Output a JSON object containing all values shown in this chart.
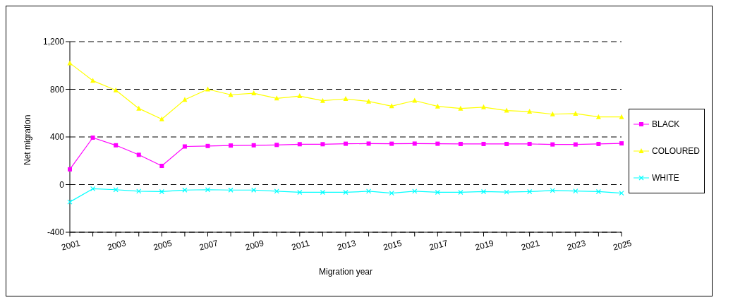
{
  "chart_data": {
    "type": "line",
    "xlabel": "Migration year",
    "ylabel": "Net migration",
    "categories": [
      "2001",
      null,
      "2003",
      null,
      "2005",
      null,
      "2007",
      null,
      "2009",
      null,
      "2011",
      null,
      "2013",
      null,
      "2015",
      null,
      "2017",
      null,
      "2019",
      null,
      "2021",
      null,
      "2023",
      null,
      "2025"
    ],
    "series": [
      {
        "name": "BLACK",
        "color": "#ff00ff",
        "marker": "square",
        "values": [
          128,
          394,
          330,
          250,
          157,
          320,
          324,
          328,
          330,
          333,
          339,
          339,
          343,
          344,
          343,
          344,
          343,
          341,
          341,
          341,
          341,
          337,
          337,
          341,
          346
        ]
      },
      {
        "name": "COLOURED",
        "color": "#ffff00",
        "marker": "triangle",
        "values": [
          1020,
          872,
          793,
          639,
          550,
          713,
          800,
          754,
          767,
          724,
          743,
          704,
          720,
          698,
          659,
          705,
          657,
          639,
          650,
          622,
          613,
          591,
          596,
          568,
          568
        ]
      },
      {
        "name": "WHITE",
        "color": "#00ffff",
        "marker": "cross",
        "values": [
          -146,
          -35,
          -43,
          -56,
          -59,
          -46,
          -43,
          -46,
          -46,
          -56,
          -65,
          -65,
          -65,
          -56,
          -72,
          -56,
          -65,
          -65,
          -59,
          -63,
          -59,
          -50,
          -54,
          -59,
          -72
        ]
      }
    ],
    "ylim": [
      -400,
      1200
    ],
    "yticks": [
      -400,
      0,
      400,
      800,
      {
        "value": 1200,
        "label": "1,200"
      }
    ],
    "grid": "y",
    "legend": "right",
    "line_style": "solid"
  }
}
